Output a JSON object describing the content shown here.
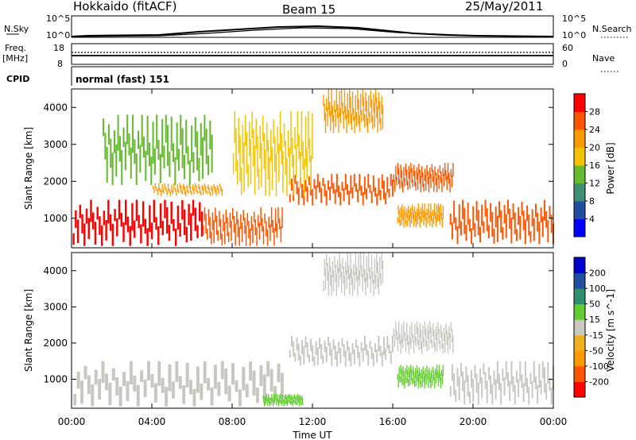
{
  "header": {
    "title": "Hokkaido (fitACF)",
    "beam": "Beam 15",
    "date": "25/May/2011"
  },
  "top_panels": {
    "nsky_label": "N.Sky",
    "nsky_ticks": [
      "10^5",
      "10^0"
    ],
    "nsearch_label": "N.Search",
    "freq_label_1": "Freq.",
    "freq_label_2": "[MHz]",
    "freq_ticks": [
      "18",
      "8"
    ],
    "nave_label": "Nave",
    "nave_ticks": [
      "60",
      "0"
    ],
    "cpid_label": "CPID",
    "cpid_value": "normal (fast) 151"
  },
  "colors": {
    "power_scale": [
      "#0000ff",
      "#1f4fa0",
      "#3f8f74",
      "#66bb33",
      "#f5c400",
      "#ff9900",
      "#ff5500",
      "#ff0000"
    ],
    "velocity_scale": [
      "#ff0000",
      "#ff5500",
      "#ff9900",
      "#f0b020",
      "#c8c8c0",
      "#66cc33",
      "#2f8f6f",
      "#1f4fa0",
      "#0000cc"
    ]
  },
  "chart_data": [
    {
      "type": "heatmap",
      "name": "power",
      "ylabel": "Slant Range [km]",
      "yticks": [
        "1000",
        "2000",
        "3000",
        "4000"
      ],
      "ylim": [
        200,
        4500
      ],
      "xlim": [
        0,
        24
      ],
      "colorbar_label": "Power [dB]",
      "colorbar_ticks": [
        "4",
        "8",
        "12",
        "16",
        "20",
        "24",
        "28"
      ],
      "colorbar_range": [
        0,
        32
      ],
      "regions": [
        {
          "t0": 0.0,
          "t1": 6.5,
          "r0": 250,
          "r1": 1500,
          "power": 28
        },
        {
          "t0": 6.5,
          "t1": 10.5,
          "r0": 250,
          "r1": 1300,
          "power": 24
        },
        {
          "t0": 4.0,
          "t1": 7.5,
          "r0": 1600,
          "r1": 1950,
          "power": 22
        },
        {
          "t0": 10.8,
          "t1": 16.0,
          "r0": 1350,
          "r1": 2200,
          "power": 24
        },
        {
          "t0": 16.0,
          "t1": 19.0,
          "r0": 1700,
          "r1": 2500,
          "power": 26
        },
        {
          "t0": 12.5,
          "t1": 15.5,
          "r0": 3300,
          "r1": 4500,
          "power": 22
        },
        {
          "t0": 16.2,
          "t1": 18.5,
          "r0": 750,
          "r1": 1400,
          "power": 22
        },
        {
          "t0": 18.8,
          "t1": 24.0,
          "r0": 300,
          "r1": 1500,
          "power": 27
        },
        {
          "t0": 1.5,
          "t1": 7.0,
          "r0": 1900,
          "r1": 3800,
          "power": 14
        },
        {
          "t0": 8.0,
          "t1": 12.0,
          "r0": 1600,
          "r1": 3900,
          "power": 16
        }
      ]
    },
    {
      "type": "heatmap",
      "name": "velocity",
      "ylabel": "Slant Range [km]",
      "yticks": [
        "1000",
        "2000",
        "3000",
        "4000"
      ],
      "ylim": [
        200,
        4500
      ],
      "xlim": [
        0,
        24
      ],
      "colorbar_label": "Velocity [m s^-1]",
      "colorbar_ticks": [
        "-200",
        "-100",
        "-50",
        "-15",
        "15",
        "50",
        "100",
        "200"
      ],
      "regions": [
        {
          "t0": 0.0,
          "t1": 10.5,
          "r0": 250,
          "r1": 1500,
          "velocity": 0
        },
        {
          "t0": 10.8,
          "t1": 16.0,
          "r0": 1350,
          "r1": 2200,
          "velocity": 0
        },
        {
          "t0": 16.0,
          "t1": 19.0,
          "r0": 1700,
          "r1": 2600,
          "velocity": 0
        },
        {
          "t0": 12.5,
          "t1": 15.5,
          "r0": 3300,
          "r1": 4500,
          "velocity": 5
        },
        {
          "t0": 16.2,
          "t1": 18.5,
          "r0": 750,
          "r1": 1400,
          "velocity": 30
        },
        {
          "t0": 9.5,
          "t1": 11.5,
          "r0": 250,
          "r1": 600,
          "velocity": 35
        },
        {
          "t0": 18.8,
          "t1": 24.0,
          "r0": 300,
          "r1": 1500,
          "velocity": -10
        }
      ]
    }
  ],
  "x_axis": {
    "ticks": [
      "00:00",
      "04:00",
      "08:00",
      "12:00",
      "16:00",
      "20:00",
      "00:00"
    ],
    "tick_hours": [
      0,
      4,
      8,
      12,
      16,
      20,
      24
    ],
    "label": "Time UT"
  }
}
